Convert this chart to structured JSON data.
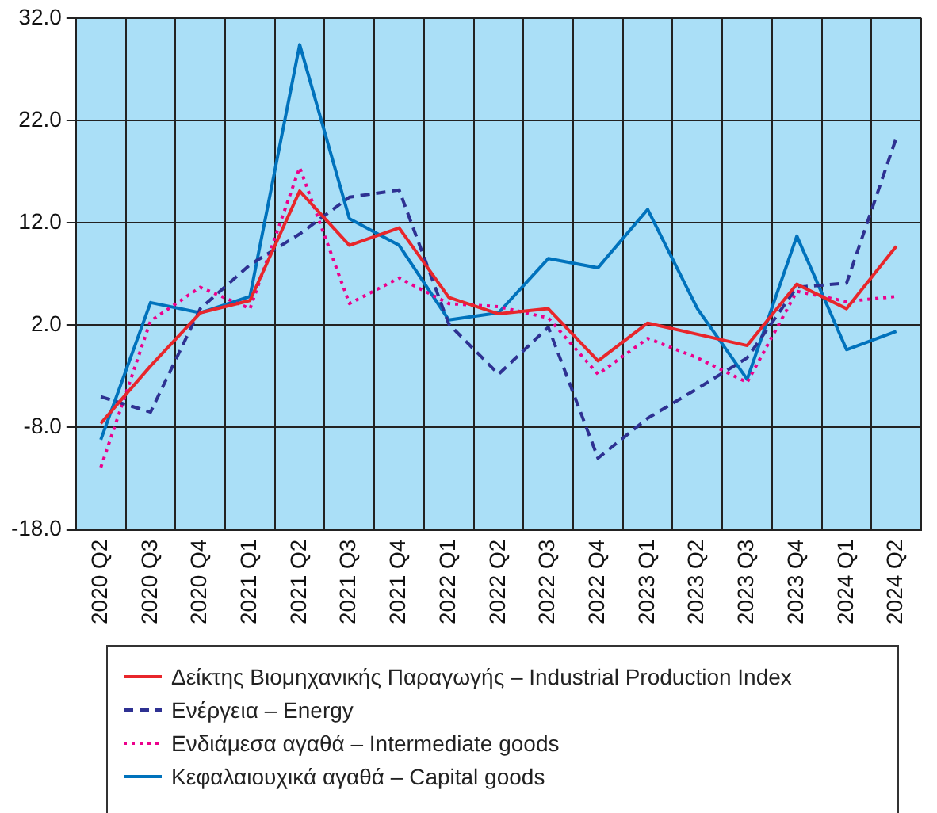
{
  "chart_data": {
    "type": "line",
    "categories": [
      "2020 Q2",
      "2020 Q3",
      "2020 Q4",
      "2021 Q1",
      "2021 Q2",
      "2021 Q3",
      "2021 Q4",
      "2022 Q1",
      "2022 Q2",
      "2022 Q3",
      "2022 Q4",
      "2023 Q1",
      "2023 Q2",
      "2023 Q3",
      "2023 Q4",
      "2024 Q1",
      "2024 Q2"
    ],
    "series": [
      {
        "name": "Δείκτης Βιομηχανικής Παραγωγής – Industrial Production Index",
        "color": "#e8262b",
        "line_style": "solid",
        "values": [
          -7.6,
          -2.0,
          3.2,
          4.4,
          15.1,
          9.8,
          11.5,
          4.7,
          3.1,
          3.6,
          -1.5,
          2.2,
          1.1,
          0.0,
          6.0,
          3.6,
          9.7
        ]
      },
      {
        "name": "Ενέργεια – Energy",
        "color": "#2e3192",
        "line_style": "dashed",
        "values": [
          -5.0,
          -6.5,
          3.6,
          7.9,
          10.9,
          14.5,
          15.2,
          2.1,
          -2.8,
          1.8,
          -11.0,
          -7.1,
          -4.2,
          -1.2,
          5.7,
          6.1,
          20.3
        ]
      },
      {
        "name": "Ενδιάμεσα αγαθά – Intermediate goods",
        "color": "#ec008c",
        "line_style": "dotted",
        "values": [
          -11.9,
          2.4,
          5.7,
          3.6,
          17.4,
          4.1,
          6.6,
          4.1,
          3.8,
          2.7,
          -2.8,
          0.7,
          -1.2,
          -3.6,
          5.3,
          4.3,
          4.8
        ]
      },
      {
        "name": "Κεφαλαιουχικά αγαθά – Capital goods",
        "color": "#0072bc",
        "line_style": "solid",
        "values": [
          -9.2,
          4.2,
          3.2,
          4.8,
          29.4,
          12.4,
          9.8,
          2.5,
          3.2,
          8.5,
          7.6,
          13.3,
          3.6,
          -3.3,
          10.7,
          -0.4,
          1.4
        ]
      }
    ],
    "ylim": [
      -18,
      32
    ],
    "yticks": [
      {
        "value": -18,
        "label": "-18.0"
      },
      {
        "value": -8,
        "label": "-8.0"
      },
      {
        "value": 2,
        "label": "2.0"
      },
      {
        "value": 12,
        "label": "12.0"
      },
      {
        "value": 22,
        "label": "22.0"
      },
      {
        "value": 32,
        "label": "32.0"
      }
    ],
    "grid": true,
    "legend": "bottom",
    "marker": "none"
  }
}
